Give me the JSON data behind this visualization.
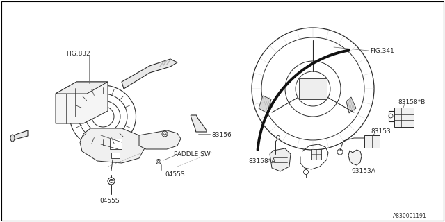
{
  "background_color": "#ffffff",
  "border_color": "#000000",
  "diagram_number": "A830001191",
  "labels": {
    "fig832": "FIG.832",
    "fig341": "FIG.341",
    "part83156": "83156",
    "paddle_sw": "PADDLE SW",
    "part0455S_1": "0455S",
    "part0455S_2": "0455S",
    "part83158A": "83158*A",
    "part83158B": "83158*B",
    "part83153": "83153",
    "part93153A": "93153A"
  },
  "font_size_labels": 6.5,
  "line_color": "#2a2a2a",
  "line_color_light": "#888888"
}
